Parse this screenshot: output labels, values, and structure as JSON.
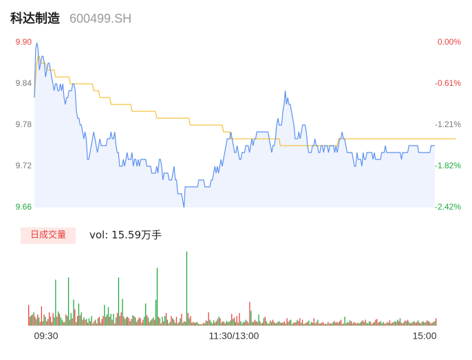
{
  "header": {
    "stock_name": "科达制造",
    "stock_code": "600499.SH"
  },
  "colors": {
    "price": "#5b8ff0",
    "avg": "#f5c342",
    "up": "#e8413e",
    "down": "#1ea83c",
    "area": "#eef3fd"
  },
  "volume": {
    "tag": "日成交量",
    "label": "vol: 15.59万手"
  },
  "chart_data": {
    "type": "line",
    "y_left_ticks": [
      "9.90",
      "9.84",
      "9.78",
      "9.72",
      "9.66"
    ],
    "y_right_ticks": [
      "0.00%",
      "-0.61%",
      "-1.21%",
      "-1.82%",
      "-2.42%"
    ],
    "x_ticks": [
      "09:30",
      "11:30/13:00",
      "15:00"
    ],
    "ylim": [
      9.66,
      9.9
    ],
    "series": [
      {
        "key": "price",
        "values": [
          9.82,
          9.89,
          9.9,
          9.89,
          9.86,
          9.87,
          9.88,
          9.88,
          9.87,
          9.85,
          9.86,
          9.87,
          9.87,
          9.86,
          9.85,
          9.84,
          9.83,
          9.84,
          9.84,
          9.83,
          9.83,
          9.84,
          9.83,
          9.84,
          9.82,
          9.81,
          9.82,
          9.82,
          9.83,
          9.83,
          9.83,
          9.84,
          9.84,
          9.83,
          9.8,
          9.79,
          9.79,
          9.78,
          9.78,
          9.77,
          9.76,
          9.77,
          9.76,
          9.73,
          9.73,
          9.74,
          9.75,
          9.76,
          9.77,
          9.76,
          9.75,
          9.74,
          9.75,
          9.76,
          9.75,
          9.75,
          9.75,
          9.75,
          9.75,
          9.76,
          9.76,
          9.76,
          9.77,
          9.76,
          9.76,
          9.77,
          9.75,
          9.74,
          9.74,
          9.72,
          9.72,
          9.72,
          9.73,
          9.72,
          9.73,
          9.74,
          9.73,
          9.73,
          9.73,
          9.74,
          9.72,
          9.73,
          9.73,
          9.72,
          9.73,
          9.72,
          9.73,
          9.73,
          9.73,
          9.73,
          9.73,
          9.72,
          9.72,
          9.72,
          9.72,
          9.71,
          9.71,
          9.71,
          9.71,
          9.72,
          9.71,
          9.73,
          9.73,
          9.72,
          9.7,
          9.71,
          9.71,
          9.71,
          9.71,
          9.7,
          9.7,
          9.7,
          9.71,
          9.72,
          9.7,
          9.7,
          9.68,
          9.68,
          9.68,
          9.68,
          9.67,
          9.66,
          9.69,
          9.69,
          9.69,
          9.69,
          9.69,
          9.69,
          9.69,
          9.69,
          9.69,
          9.69,
          9.69,
          9.7,
          9.7,
          9.7,
          9.7,
          9.7,
          9.69,
          9.69,
          9.69,
          9.69,
          9.69,
          9.7,
          9.7,
          9.71,
          9.72,
          9.71,
          9.72,
          9.71,
          9.72,
          9.73,
          9.72,
          9.73,
          9.74,
          9.75,
          9.76,
          9.76,
          9.76,
          9.77,
          9.76,
          9.75,
          9.74,
          9.74,
          9.75,
          9.74,
          9.73,
          9.73,
          9.74,
          9.74,
          9.74,
          9.75,
          9.75,
          9.75,
          9.74,
          9.75,
          9.76,
          9.75,
          9.76,
          9.76,
          9.77,
          9.77,
          9.77,
          9.77,
          9.77,
          9.77,
          9.77,
          9.77,
          9.77,
          9.77,
          9.76,
          9.75,
          9.74,
          9.75,
          9.75,
          9.76,
          9.78,
          9.79,
          9.78,
          9.78,
          9.78,
          9.8,
          9.81,
          9.83,
          9.81,
          9.82,
          9.81,
          9.81,
          9.8,
          9.79,
          9.78,
          9.76,
          9.76,
          9.76,
          9.77,
          9.76,
          9.77,
          9.78,
          9.78,
          9.78,
          9.77,
          9.75,
          9.74,
          9.74,
          9.74,
          9.75,
          9.75,
          9.76,
          9.75,
          9.75,
          9.74,
          9.74,
          9.75,
          9.75,
          9.74,
          9.75,
          9.75,
          9.75,
          9.74,
          9.75,
          9.75,
          9.75,
          9.75,
          9.74,
          9.75,
          9.74,
          9.75,
          9.76,
          9.76,
          9.77,
          9.76,
          9.76,
          9.75,
          9.74,
          9.74,
          9.74,
          9.74,
          9.74,
          9.73,
          9.72,
          9.72,
          9.74,
          9.73,
          9.73,
          9.73,
          9.72,
          9.74,
          9.73,
          9.73,
          9.74,
          9.74,
          9.74,
          9.74,
          9.74,
          9.73,
          9.74,
          9.73,
          9.73,
          9.73,
          9.73,
          9.73,
          9.74,
          9.74,
          9.74,
          9.75,
          9.74,
          9.74,
          9.74,
          9.74,
          9.74,
          9.74,
          9.74,
          9.74,
          9.74,
          9.74,
          9.74,
          9.74,
          9.73,
          9.74,
          9.74,
          9.74,
          9.74,
          9.74,
          9.75,
          9.75,
          9.75,
          9.75,
          9.75,
          9.75,
          9.75,
          9.75,
          9.74,
          9.74,
          9.74,
          9.74,
          9.74,
          9.74,
          9.74,
          9.74,
          9.74,
          9.74,
          9.75,
          9.75,
          9.75,
          9.75
        ]
      },
      {
        "key": "avg",
        "values": [
          9.82,
          9.85,
          9.87,
          9.88,
          9.88,
          9.87,
          9.87,
          9.87,
          9.87,
          9.87,
          9.86,
          9.86,
          9.86,
          9.86,
          9.86,
          9.86,
          9.86,
          9.85,
          9.85,
          9.85,
          9.85,
          9.85,
          9.85,
          9.85,
          9.85,
          9.85,
          9.85,
          9.85,
          9.85,
          9.84,
          9.84,
          9.84,
          9.84,
          9.84,
          9.84,
          9.84,
          9.84,
          9.84,
          9.84,
          9.84,
          9.84,
          9.84,
          9.84,
          9.84,
          9.84,
          9.84,
          9.84,
          9.84,
          9.83,
          9.83,
          9.83,
          9.83,
          9.83,
          9.82,
          9.82,
          9.82,
          9.82,
          9.82,
          9.82,
          9.82,
          9.82,
          9.82,
          9.81,
          9.81,
          9.81,
          9.81,
          9.81,
          9.81,
          9.81,
          9.81,
          9.81,
          9.81,
          9.81,
          9.81,
          9.81,
          9.81,
          9.81,
          9.81,
          9.81,
          9.8,
          9.8,
          9.8,
          9.8,
          9.8,
          9.8,
          9.8,
          9.8,
          9.8,
          9.8,
          9.8,
          9.8,
          9.8,
          9.8,
          9.8,
          9.8,
          9.8,
          9.8,
          9.8,
          9.8,
          9.79,
          9.79,
          9.79,
          9.79,
          9.79,
          9.79,
          9.79,
          9.79,
          9.79,
          9.79,
          9.79,
          9.79,
          9.79,
          9.79,
          9.79,
          9.79,
          9.79,
          9.79,
          9.79,
          9.79,
          9.79,
          9.79,
          9.79,
          9.79,
          9.79,
          9.79,
          9.79,
          9.78,
          9.78,
          9.78,
          9.78,
          9.78,
          9.78,
          9.78,
          9.78,
          9.78,
          9.78,
          9.78,
          9.78,
          9.78,
          9.78,
          9.78,
          9.78,
          9.78,
          9.78,
          9.78,
          9.78,
          9.78,
          9.78,
          9.78,
          9.78,
          9.78,
          9.78,
          9.78,
          9.77,
          9.77,
          9.77,
          9.77,
          9.77,
          9.77,
          9.76,
          9.76,
          9.76,
          9.76,
          9.76,
          9.76,
          9.76,
          9.76,
          9.76,
          9.76,
          9.76,
          9.76,
          9.76,
          9.76,
          9.76,
          9.76,
          9.76,
          9.76,
          9.76,
          9.76,
          9.76,
          9.76,
          9.76,
          9.76,
          9.76,
          9.76,
          9.76,
          9.76,
          9.76,
          9.76,
          9.76,
          9.76,
          9.76,
          9.76,
          9.76,
          9.76,
          9.76,
          9.76,
          9.76,
          9.76,
          9.75,
          9.75,
          9.75,
          9.75,
          9.75,
          9.75,
          9.75,
          9.75,
          9.75,
          9.75,
          9.75,
          9.75,
          9.75,
          9.75,
          9.75,
          9.75,
          9.75,
          9.75,
          9.75,
          9.75,
          9.75,
          9.75,
          9.75,
          9.75,
          9.75,
          9.75,
          9.75,
          9.75,
          9.75,
          9.75,
          9.75,
          9.75,
          9.75,
          9.75,
          9.75,
          9.75,
          9.75,
          9.75,
          9.75,
          9.75,
          9.75,
          9.75,
          9.75,
          9.75,
          9.75,
          9.75,
          9.75,
          9.76,
          9.76,
          9.76,
          9.76,
          9.76,
          9.76,
          9.76,
          9.76,
          9.76,
          9.76,
          9.76,
          9.76,
          9.76,
          9.76,
          9.76,
          9.76,
          9.76,
          9.76,
          9.76,
          9.76,
          9.76,
          9.76,
          9.76,
          9.76,
          9.76,
          9.76,
          9.76,
          9.76,
          9.76,
          9.76,
          9.76,
          9.76,
          9.76,
          9.76,
          9.76,
          9.76,
          9.76,
          9.76,
          9.76,
          9.76,
          9.76,
          9.76,
          9.76,
          9.76,
          9.76,
          9.76,
          9.76,
          9.76,
          9.76,
          9.76,
          9.76,
          9.76,
          9.76,
          9.76,
          9.76,
          9.76,
          9.76,
          9.76,
          9.76,
          9.76,
          9.76,
          9.76,
          9.76,
          9.76,
          9.76,
          9.76,
          9.76,
          9.76,
          9.76,
          9.76,
          9.76,
          9.76,
          9.76,
          9.76,
          9.76,
          9.76,
          9.76,
          9.76,
          9.76,
          9.76,
          9.76,
          9.76,
          9.76,
          9.76,
          9.76,
          9.76,
          9.76,
          9.76,
          9.76,
          9.76,
          9.76,
          9.76,
          9.76,
          9.76,
          9.76,
          9.76
        ]
      }
    ],
    "volume_max": 1.0,
    "volumes": [
      0.28,
      0.12,
      0.14,
      0.15,
      0.18,
      0.12,
      0.09,
      0.15,
      0.11,
      0.05,
      0.26,
      0.06,
      0.15,
      0.12,
      0.06,
      0.09,
      0.18,
      0.12,
      0.05,
      0.17,
      0.11,
      0.62,
      0.12,
      0.19,
      0.16,
      0.11,
      0.08,
      0.05,
      0.05,
      0.15,
      0.13,
      0.65,
      0.08,
      0.17,
      0.1,
      0.35,
      0.22,
      0.05,
      0.13,
      0.3,
      0.14,
      0.18,
      0.08,
      0.11,
      0.08,
      0.09,
      0.04,
      0.1,
      0.06,
      0.13,
      0.03,
      0.06,
      0.08,
      0.03,
      0.1,
      0.12,
      0.04,
      0.09,
      0.13,
      0.28,
      0.12,
      0.15,
      0.25,
      0.12,
      0.16,
      0.08,
      0.16,
      0.03,
      0.11,
      0.17,
      0.65,
      0.13,
      0.18,
      0.36,
      0.12,
      0.09,
      0.11,
      0.12,
      0.1,
      0.06,
      0.09,
      0.14,
      0.13,
      0.11,
      0.05,
      0.08,
      0.11,
      0.1,
      0.04,
      0.08,
      0.12,
      0.3,
      0.14,
      0.11,
      0.05,
      0.07,
      0.09,
      0.11,
      0.08,
      0.35,
      0.78,
      0.12,
      0.1,
      0.03,
      0.12,
      0.06,
      0.13,
      0.17,
      0.08,
      0.03,
      0.05,
      0.13,
      0.1,
      0.08,
      0.04,
      0.12,
      0.03,
      0.05,
      0.1,
      0.16,
      0.04,
      0.06,
      0.05,
      1.0,
      0.17,
      0.1,
      0.13,
      0.04,
      0.05,
      0.04,
      0.04,
      0.05,
      0.03,
      0.02,
      0.02,
      0.02,
      0.04,
      0.03,
      0.07,
      0.06,
      0.18,
      0.08,
      0.05,
      0.03,
      0.07,
      0.04,
      0.06,
      0.09,
      0.12,
      0.1,
      0.04,
      0.06,
      0.05,
      0.03,
      0.06,
      0.05,
      0.05,
      0.07,
      0.16,
      0.09,
      0.11,
      0.05,
      0.13,
      0.04,
      0.17,
      0.06,
      0.03,
      0.05,
      0.05,
      0.08,
      0.06,
      0.04,
      0.32,
      0.2,
      0.05,
      0.05,
      0.08,
      0.06,
      0.05,
      0.15,
      0.06,
      0.03,
      0.04,
      0.1,
      0.12,
      0.06,
      0.03,
      0.03,
      0.07,
      0.05,
      0.08,
      0.05,
      0.03,
      0.04,
      0.05,
      0.06,
      0.04,
      0.04,
      0.04,
      0.06,
      0.03,
      0.1,
      0.05,
      0.07,
      0.08,
      0.02,
      0.04,
      0.04,
      0.05,
      0.08,
      0.06,
      0.1,
      0.04,
      0.08,
      0.02,
      0.03,
      0.04,
      0.05,
      0.07,
      0.02,
      0.05,
      0.04,
      0.1,
      0.03,
      0.05,
      0.08,
      0.03,
      0.03,
      0.04,
      0.05,
      0.02,
      0.03,
      0.02,
      0.05,
      0.03,
      0.03,
      0.03,
      0.05,
      0.06,
      0.04,
      0.05,
      0.04,
      0.06,
      0.08,
      0.02,
      0.03,
      0.12,
      0.03,
      0.05,
      0.04,
      0.07,
      0.06,
      0.03,
      0.05,
      0.04,
      0.03,
      0.04,
      0.03,
      0.04,
      0.06,
      0.07,
      0.05,
      0.08,
      0.04,
      0.03,
      0.06,
      0.05,
      0.02,
      0.04,
      0.05,
      0.08,
      0.09,
      0.04,
      0.05,
      0.06,
      0.03,
      0.05,
      0.03,
      0.03,
      0.05,
      0.04,
      0.07,
      0.03,
      0.04,
      0.05,
      0.06,
      0.05,
      0.08,
      0.06,
      0.1,
      0.04,
      0.03,
      0.05,
      0.07,
      0.06,
      0.08,
      0.05,
      0.03,
      0.04,
      0.05,
      0.06,
      0.04,
      0.05,
      0.07,
      0.04,
      0.03,
      0.05,
      0.06,
      0.04,
      0.05,
      0.07,
      0.06,
      0.05,
      0.03,
      0.04,
      0.05,
      0.06,
      0.1
    ],
    "volume_up": [
      1,
      1,
      0,
      1,
      0,
      1,
      0,
      1,
      0,
      1,
      1,
      0,
      1,
      0,
      1,
      0,
      1,
      1,
      0,
      1,
      0,
      0,
      1,
      0,
      1,
      0,
      0,
      1,
      0,
      1,
      0,
      0,
      1,
      0,
      1,
      0,
      1,
      0,
      1,
      0,
      1,
      0,
      1,
      0,
      1,
      0,
      1,
      0,
      1,
      0,
      1,
      0,
      1,
      1,
      0,
      1,
      0,
      1,
      1,
      0,
      1,
      0,
      0,
      1,
      0,
      1,
      0,
      1,
      0,
      1,
      0,
      1,
      1,
      0,
      1,
      0,
      1,
      0,
      1,
      0,
      1,
      0,
      1,
      0,
      1,
      0,
      1,
      1,
      0,
      1,
      0,
      0,
      1,
      0,
      1,
      0,
      1,
      0,
      1,
      0,
      0,
      1,
      0,
      1,
      0,
      1,
      0,
      1,
      0,
      1,
      0,
      1,
      0,
      1,
      0,
      1,
      0,
      1,
      0,
      1,
      0,
      1,
      0,
      0,
      1,
      0,
      1,
      0,
      1,
      0,
      1,
      0,
      1,
      0,
      1,
      0,
      1,
      0,
      1,
      0,
      1,
      0,
      0,
      1,
      0,
      1,
      0,
      1,
      0,
      1,
      0,
      1,
      0,
      1,
      0,
      1,
      0,
      0,
      1,
      0,
      1,
      0,
      1,
      0,
      1,
      0,
      1,
      0,
      1,
      0,
      1,
      0,
      1,
      0,
      1,
      0,
      1,
      0,
      1,
      0,
      1,
      0,
      1,
      0,
      1,
      0,
      1,
      0,
      1,
      0,
      1,
      0,
      1,
      0,
      1,
      0,
      1,
      0,
      1,
      1,
      0,
      1,
      0,
      1,
      0,
      1,
      0,
      1,
      1,
      0,
      1,
      1,
      0,
      1,
      0,
      1,
      0,
      1,
      0,
      1,
      0,
      1,
      1,
      0,
      1,
      0,
      1,
      0,
      1,
      1,
      0,
      1,
      0,
      1,
      1,
      0,
      1,
      0,
      1,
      0,
      1,
      0,
      1,
      1,
      0,
      1,
      0,
      1,
      0,
      1,
      0,
      1,
      0,
      1,
      1,
      0,
      1,
      0,
      1,
      0,
      1,
      0,
      1,
      0,
      1,
      0,
      1,
      0,
      1,
      0,
      1,
      1,
      0,
      1,
      0,
      1,
      0,
      1,
      0,
      1,
      0,
      1,
      1,
      0,
      1,
      0,
      1,
      0,
      1,
      0,
      1,
      1,
      0,
      1,
      0,
      1,
      0,
      1,
      0,
      1,
      0,
      1,
      1,
      0,
      1,
      0,
      1,
      0,
      1,
      0,
      1,
      0
    ]
  }
}
